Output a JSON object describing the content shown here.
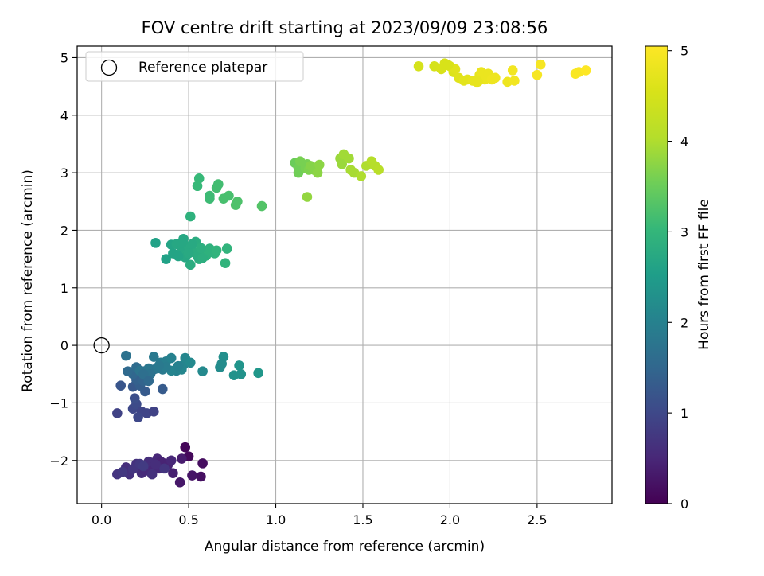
{
  "chart_data": {
    "type": "scatter",
    "title": "FOV centre drift starting at 2023/09/09 23:08:56",
    "xlabel": "Angular distance from reference (arcmin)",
    "ylabel": "Rotation from reference (arcmin)",
    "xlim": [
      -0.14,
      2.93
    ],
    "ylim": [
      -2.75,
      5.2
    ],
    "xticks": [
      0.0,
      0.5,
      1.0,
      1.5,
      2.0,
      2.5
    ],
    "xtick_labels": [
      "0.0",
      "0.5",
      "1.0",
      "1.5",
      "2.0",
      "2.5"
    ],
    "yticks": [
      -2,
      -1,
      0,
      1,
      2,
      3,
      4,
      5
    ],
    "ytick_labels": [
      "−2",
      "−1",
      "0",
      "1",
      "2",
      "3",
      "4",
      "5"
    ],
    "grid": true,
    "legend": {
      "position": "top-left",
      "entries": [
        "Reference platepar"
      ]
    },
    "colorbar": {
      "label": "Hours from first FF file",
      "colormap": "viridis",
      "range": [
        0,
        5.05
      ],
      "ticks": [
        0,
        1,
        2,
        3,
        4,
        5
      ],
      "tick_labels": [
        "0",
        "1",
        "2",
        "3",
        "4",
        "5"
      ]
    },
    "reference_point": {
      "x": 0.0,
      "y": 0.0
    },
    "series": [
      {
        "values": [
          [
            0.48,
            -1.77,
            0.05
          ],
          [
            0.5,
            -1.93,
            0.1
          ],
          [
            0.58,
            -2.05,
            0.15
          ],
          [
            0.57,
            -2.28,
            0.2
          ],
          [
            0.52,
            -2.26,
            0.25
          ],
          [
            0.45,
            -2.38,
            0.3
          ],
          [
            0.46,
            -1.97,
            0.35
          ],
          [
            0.41,
            -2.22,
            0.4
          ],
          [
            0.36,
            -2.05,
            0.45
          ],
          [
            0.32,
            -1.97,
            0.5
          ],
          [
            0.28,
            -2.1,
            0.55
          ],
          [
            0.23,
            -2.22,
            0.6
          ],
          [
            0.16,
            -2.24,
            0.65
          ],
          [
            0.09,
            -2.24,
            0.7
          ],
          [
            0.14,
            -2.12,
            0.6
          ],
          [
            0.2,
            -2.06,
            0.65
          ],
          [
            0.25,
            -2.18,
            0.55
          ],
          [
            0.3,
            -2.12,
            0.5
          ],
          [
            0.34,
            -2.02,
            0.45
          ],
          [
            0.38,
            -2.08,
            0.45
          ],
          [
            0.27,
            -2.02,
            0.6
          ],
          [
            0.18,
            -2.15,
            0.7
          ],
          [
            0.12,
            -2.2,
            0.75
          ],
          [
            0.22,
            -2.06,
            0.75
          ],
          [
            0.33,
            -2.14,
            0.55
          ],
          [
            0.29,
            -2.24,
            0.65
          ],
          [
            0.4,
            -2.0,
            0.5
          ],
          [
            0.24,
            -2.1,
            0.8
          ],
          [
            0.36,
            -2.14,
            0.7
          ],
          [
            0.31,
            -2.07,
            0.6
          ],
          [
            0.09,
            -1.18,
            0.9
          ],
          [
            0.18,
            -1.1,
            1.0
          ],
          [
            0.2,
            -1.02,
            1.05
          ],
          [
            0.23,
            -1.15,
            0.95
          ],
          [
            0.21,
            -1.25,
            1.0
          ],
          [
            0.26,
            -1.18,
            0.95
          ],
          [
            0.3,
            -1.15,
            0.9
          ],
          [
            0.19,
            -0.92,
            1.1
          ],
          [
            0.11,
            -0.7,
            1.2
          ],
          [
            0.18,
            -0.72,
            1.25
          ],
          [
            0.25,
            -0.8,
            1.3
          ],
          [
            0.22,
            -0.7,
            1.35
          ],
          [
            0.35,
            -0.76,
            1.3
          ],
          [
            0.2,
            -0.6,
            1.4
          ],
          [
            0.24,
            -0.62,
            1.45
          ],
          [
            0.26,
            -0.55,
            1.5
          ],
          [
            0.18,
            -0.5,
            1.5
          ],
          [
            0.15,
            -0.45,
            1.55
          ],
          [
            0.2,
            -0.38,
            1.6
          ],
          [
            0.24,
            -0.45,
            1.6
          ],
          [
            0.3,
            -0.42,
            1.7
          ],
          [
            0.14,
            -0.18,
            1.7
          ],
          [
            0.22,
            -0.44,
            1.75
          ],
          [
            0.27,
            -0.4,
            1.8
          ],
          [
            0.3,
            -0.2,
            1.85
          ],
          [
            0.34,
            -0.3,
            1.9
          ],
          [
            0.37,
            -0.28,
            1.95
          ],
          [
            0.35,
            -0.42,
            1.85
          ],
          [
            0.4,
            -0.22,
            2.0
          ],
          [
            0.43,
            -0.44,
            2.0
          ],
          [
            0.47,
            -0.34,
            2.05
          ],
          [
            0.48,
            -0.22,
            2.1
          ],
          [
            0.51,
            -0.3,
            2.15
          ],
          [
            0.46,
            -0.42,
            2.1
          ],
          [
            0.58,
            -0.45,
            2.15
          ],
          [
            0.4,
            -0.44,
            2.05
          ],
          [
            0.68,
            -0.38,
            2.2
          ],
          [
            0.7,
            -0.2,
            2.25
          ],
          [
            0.69,
            -0.32,
            2.2
          ],
          [
            0.76,
            -0.52,
            2.3
          ],
          [
            0.79,
            -0.35,
            2.35
          ],
          [
            0.8,
            -0.5,
            2.3
          ],
          [
            0.9,
            -0.48,
            2.4
          ],
          [
            0.37,
            -0.38,
            1.9
          ],
          [
            0.32,
            -0.4,
            1.8
          ],
          [
            0.28,
            -0.5,
            1.7
          ],
          [
            0.24,
            -0.5,
            1.65
          ],
          [
            0.44,
            -0.36,
            2.0
          ],
          [
            0.33,
            -0.35,
            1.85
          ],
          [
            0.27,
            -0.62,
            1.55
          ],
          [
            0.31,
            1.78,
            2.6
          ],
          [
            0.37,
            1.5,
            2.6
          ],
          [
            0.41,
            1.6,
            2.65
          ],
          [
            0.4,
            1.75,
            2.65
          ],
          [
            0.43,
            1.76,
            2.7
          ],
          [
            0.46,
            1.67,
            2.7
          ],
          [
            0.47,
            1.85,
            2.7
          ],
          [
            0.49,
            1.58,
            2.75
          ],
          [
            0.5,
            1.72,
            2.75
          ],
          [
            0.51,
            1.4,
            2.8
          ],
          [
            0.53,
            1.62,
            2.8
          ],
          [
            0.54,
            1.8,
            2.8
          ],
          [
            0.56,
            1.5,
            2.85
          ],
          [
            0.58,
            1.65,
            2.85
          ],
          [
            0.6,
            1.56,
            2.9
          ],
          [
            0.62,
            1.68,
            2.9
          ],
          [
            0.65,
            1.6,
            2.95
          ],
          [
            0.71,
            1.43,
            2.95
          ],
          [
            0.72,
            1.68,
            2.95
          ],
          [
            0.48,
            1.53,
            2.7
          ],
          [
            0.44,
            1.55,
            2.65
          ],
          [
            0.52,
            1.76,
            2.75
          ],
          [
            0.55,
            1.55,
            2.8
          ],
          [
            0.58,
            1.52,
            2.85
          ],
          [
            0.63,
            1.62,
            2.9
          ],
          [
            0.51,
            2.24,
            2.9
          ],
          [
            0.46,
            1.78,
            2.7
          ],
          [
            0.5,
            1.6,
            2.75
          ],
          [
            0.57,
            1.69,
            2.85
          ],
          [
            0.66,
            1.65,
            2.95
          ],
          [
            0.55,
            2.77,
            3.05
          ],
          [
            0.56,
            2.9,
            3.05
          ],
          [
            0.62,
            2.55,
            3.1
          ],
          [
            0.62,
            2.6,
            3.1
          ],
          [
            0.66,
            2.74,
            3.15
          ],
          [
            0.67,
            2.8,
            3.15
          ],
          [
            0.7,
            2.55,
            3.2
          ],
          [
            0.73,
            2.6,
            3.2
          ],
          [
            0.77,
            2.44,
            3.25
          ],
          [
            0.78,
            2.5,
            3.25
          ],
          [
            0.92,
            2.42,
            3.3
          ],
          [
            1.11,
            3.17,
            3.5
          ],
          [
            1.13,
            3.08,
            3.55
          ],
          [
            1.13,
            3.0,
            3.55
          ],
          [
            1.14,
            3.2,
            3.6
          ],
          [
            1.17,
            3.08,
            3.6
          ],
          [
            1.18,
            3.15,
            3.6
          ],
          [
            1.19,
            3.05,
            3.65
          ],
          [
            1.2,
            3.12,
            3.7
          ],
          [
            1.22,
            3.05,
            3.7
          ],
          [
            1.24,
            3.0,
            3.75
          ],
          [
            1.25,
            3.14,
            3.75
          ],
          [
            1.18,
            2.58,
            3.8
          ],
          [
            1.37,
            3.25,
            3.85
          ],
          [
            1.38,
            3.15,
            3.85
          ],
          [
            1.39,
            3.32,
            3.9
          ],
          [
            1.42,
            3.25,
            3.9
          ],
          [
            1.43,
            3.05,
            3.95
          ],
          [
            1.45,
            3.0,
            3.95
          ],
          [
            1.49,
            2.94,
            4.0
          ],
          [
            1.52,
            3.12,
            4.0
          ],
          [
            1.55,
            3.2,
            4.05
          ],
          [
            1.57,
            3.12,
            4.05
          ],
          [
            1.59,
            3.05,
            4.1
          ],
          [
            1.82,
            4.85,
            4.5
          ],
          [
            1.91,
            4.85,
            4.5
          ],
          [
            1.95,
            4.8,
            4.55
          ],
          [
            1.97,
            4.9,
            4.55
          ],
          [
            2.0,
            4.85,
            4.6
          ],
          [
            2.02,
            4.75,
            4.6
          ],
          [
            2.03,
            4.8,
            4.65
          ],
          [
            2.05,
            4.65,
            4.65
          ],
          [
            2.08,
            4.6,
            4.7
          ],
          [
            2.1,
            4.62,
            4.7
          ],
          [
            2.13,
            4.6,
            4.75
          ],
          [
            2.15,
            4.58,
            4.75
          ],
          [
            2.17,
            4.7,
            4.75
          ],
          [
            2.18,
            4.75,
            4.8
          ],
          [
            2.2,
            4.62,
            4.8
          ],
          [
            2.22,
            4.72,
            4.8
          ],
          [
            2.24,
            4.62,
            4.85
          ],
          [
            2.26,
            4.65,
            4.85
          ],
          [
            2.33,
            4.58,
            4.85
          ],
          [
            2.36,
            4.78,
            4.9
          ],
          [
            2.37,
            4.6,
            4.9
          ],
          [
            2.5,
            4.7,
            4.95
          ],
          [
            2.52,
            4.88,
            4.95
          ],
          [
            2.72,
            4.72,
            5.0
          ],
          [
            2.74,
            4.75,
            5.0
          ],
          [
            2.78,
            4.78,
            5.05
          ],
          [
            2.16,
            4.58,
            4.75
          ],
          [
            1.99,
            4.87,
            4.55
          ]
        ]
      }
    ]
  }
}
